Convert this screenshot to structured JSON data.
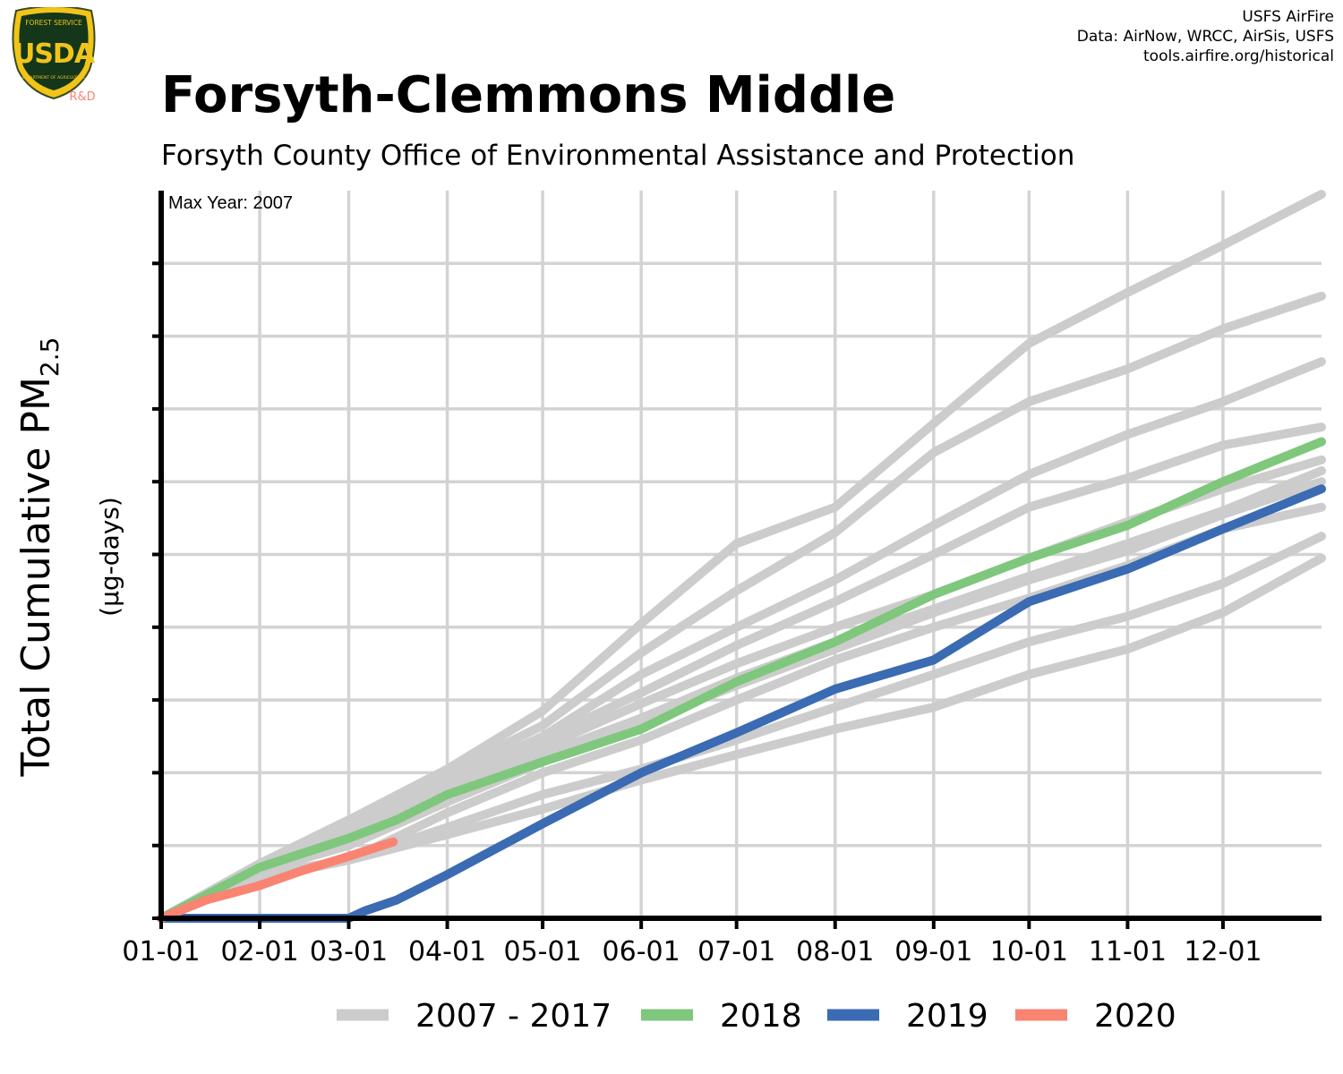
{
  "header": {
    "title": "Forsyth-Clemmons Middle",
    "subtitle": "Forsyth County Office of Environmental Assistance and Protection",
    "credits": [
      "USFS AirFire",
      "Data: AirNow, WRCC, AirSis, USFS",
      "tools.airfire.org/historical"
    ]
  },
  "logo": {
    "top_text": "FOREST SERVICE",
    "main_text": "USDA",
    "bottom_text": "DEPARTMENT OF AGRICULTURE",
    "rd_text": "R&D"
  },
  "colors": {
    "history": "#cccccc",
    "y2018": "#7fc77c",
    "y2019": "#3a6bb3",
    "y2020": "#f98472",
    "grid": "#d3d3d3",
    "axis": "#000000"
  },
  "chart_data": {
    "type": "line",
    "title": "Forsyth-Clemmons Middle",
    "subtitle": "Forsyth County Office of Environmental Assistance and Protection",
    "annotation": "Max Year: 2007",
    "ylabel": "Total Cumulative PM2.5",
    "ylabel_main": "Total Cumulative PM",
    "ylabel_sub": "2.5",
    "ylabel_units": "(µg-days)",
    "x_ticks": [
      "01-01",
      "02-01",
      "03-01",
      "04-01",
      "05-01",
      "06-01",
      "07-01",
      "08-01",
      "09-01",
      "10-01",
      "11-01",
      "12-01"
    ],
    "x_tick_days": [
      1,
      32,
      60,
      91,
      121,
      152,
      182,
      213,
      244,
      274,
      305,
      335
    ],
    "xlim": [
      1,
      366
    ],
    "ylim": [
      0,
      100
    ],
    "y_ticks": [
      0,
      10,
      20,
      30,
      40,
      50,
      60,
      70,
      80,
      90
    ],
    "y_tick_labels_shown": false,
    "grid": true,
    "legend_position": "bottom",
    "legend": [
      "2007 - 2017",
      "2018",
      "2019",
      "2020"
    ],
    "history_label": "2007 - 2017",
    "history_series": [
      {
        "x": [
          1,
          32,
          60,
          91,
          121,
          152,
          182,
          213,
          244,
          274,
          305,
          335,
          366
        ],
        "y": [
          0,
          7.5,
          13.5,
          20.5,
          28.5,
          40.5,
          51.5,
          56.5,
          68,
          79,
          86,
          92.5,
          99.5
        ]
      },
      {
        "x": [
          1,
          32,
          60,
          91,
          121,
          152,
          182,
          213,
          244,
          274,
          305,
          335,
          366
        ],
        "y": [
          0,
          7.5,
          13.5,
          20,
          26.5,
          36.5,
          45,
          53,
          64,
          71,
          75.5,
          81,
          85.5
        ]
      },
      {
        "x": [
          1,
          32,
          60,
          91,
          121,
          152,
          182,
          213,
          244,
          274,
          305,
          335,
          366
        ],
        "y": [
          0,
          7.5,
          13,
          19,
          25,
          33.5,
          40,
          46.5,
          54,
          61,
          66.5,
          71,
          76.5
        ]
      },
      {
        "x": [
          1,
          32,
          60,
          91,
          121,
          152,
          182,
          213,
          244,
          274,
          305,
          335,
          366
        ],
        "y": [
          0,
          7,
          13,
          19,
          24.5,
          31,
          37.5,
          43.5,
          50,
          56.5,
          60.5,
          65,
          67.5
        ]
      },
      {
        "x": [
          1,
          32,
          60,
          91,
          121,
          152,
          182,
          213,
          244,
          274,
          305,
          335,
          366
        ],
        "y": [
          0,
          7,
          12.5,
          18,
          23.5,
          29.5,
          35,
          40,
          44.5,
          49.5,
          54.5,
          59,
          63
        ]
      },
      {
        "x": [
          1,
          32,
          60,
          91,
          121,
          152,
          182,
          213,
          244,
          274,
          305,
          335,
          366
        ],
        "y": [
          0,
          7,
          12,
          17.5,
          22.5,
          27.5,
          33,
          38,
          42.5,
          47,
          51.5,
          56,
          61.5
        ]
      },
      {
        "x": [
          1,
          32,
          60,
          91,
          121,
          152,
          182,
          213,
          244,
          274,
          305,
          335,
          366
        ],
        "y": [
          0,
          6.5,
          10,
          16,
          21.5,
          27,
          32,
          37,
          42,
          46.5,
          50.5,
          55.5,
          60
        ]
      },
      {
        "x": [
          1,
          32,
          60,
          91,
          121,
          152,
          182,
          213,
          244,
          274,
          305,
          335,
          366
        ],
        "y": [
          0,
          6,
          8,
          14.5,
          20,
          24.5,
          30,
          35.5,
          40,
          44,
          48.5,
          53.5,
          56.5
        ]
      },
      {
        "x": [
          1,
          32,
          60,
          91,
          121,
          152,
          182,
          213,
          244,
          274,
          305,
          335,
          366
        ],
        "y": [
          0,
          5.5,
          8,
          12.5,
          17,
          20.5,
          24.5,
          29,
          33.5,
          38,
          41.5,
          46,
          52.5
        ]
      },
      {
        "x": [
          1,
          32,
          60,
          91,
          121,
          152,
          182,
          213,
          244,
          274,
          305,
          335,
          366
        ],
        "y": [
          0,
          5.5,
          8,
          11.5,
          15,
          19,
          22.5,
          26,
          29,
          33.5,
          37,
          42,
          49.5
        ]
      }
    ],
    "series": [
      {
        "name": "2018",
        "x": [
          1,
          32,
          60,
          75,
          91,
          121,
          135,
          152,
          182,
          213,
          244,
          274,
          305,
          335,
          366
        ],
        "y": [
          0,
          7,
          11,
          13.5,
          17,
          21.5,
          23.5,
          26,
          32.5,
          38,
          44.5,
          49.5,
          54,
          60,
          65.5
        ]
      },
      {
        "name": "2019",
        "x": [
          1,
          32,
          60,
          65,
          75,
          91,
          121,
          152,
          182,
          213,
          244,
          274,
          305,
          335,
          366
        ],
        "y": [
          0,
          0,
          0,
          1,
          2.5,
          6,
          13,
          20,
          25.5,
          31.5,
          35.5,
          43.5,
          48,
          53.5,
          59
        ]
      },
      {
        "name": "2020",
        "x": [
          1,
          15,
          32,
          45,
          60,
          74
        ],
        "y": [
          0,
          2.5,
          4.5,
          6.5,
          8.5,
          10.5
        ]
      }
    ]
  }
}
